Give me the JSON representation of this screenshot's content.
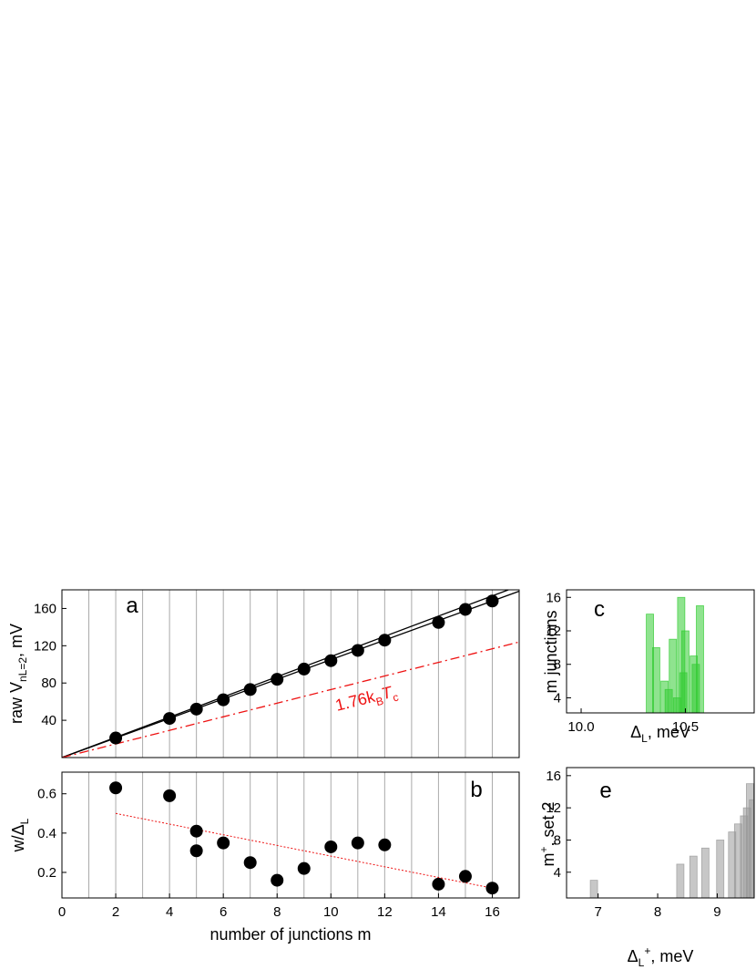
{
  "chart_data": [
    {
      "type": "scatter",
      "label": "a",
      "ylabel": [
        "raw V",
        "nL=2",
        ", mV"
      ],
      "xlim": [
        0,
        17
      ],
      "xgrid": [
        1,
        2,
        3,
        4,
        5,
        6,
        7,
        8,
        9,
        10,
        11,
        12,
        13,
        14,
        15,
        16
      ],
      "ylim": [
        0,
        180
      ],
      "yticks": [
        40,
        80,
        120,
        160
      ],
      "x": [
        2,
        4,
        5,
        6,
        7,
        8,
        9,
        10,
        11,
        12,
        14,
        15,
        16
      ],
      "values": [
        21,
        42,
        52,
        62,
        73,
        84,
        95,
        104,
        115,
        126,
        145,
        159,
        168
      ],
      "color": "#000000",
      "lines": [
        {
          "x": [
            0,
            17
          ],
          "values": [
            0,
            178.5
          ],
          "color": "#000000",
          "style": "solid"
        },
        {
          "x": [
            0,
            16.6
          ],
          "values": [
            0,
            180
          ],
          "color": "#000000",
          "style": "solid"
        },
        {
          "x": [
            0,
            17
          ],
          "values": [
            0,
            124
          ],
          "color": "#ee1111",
          "style": "dashdot"
        }
      ],
      "annotation": [
        "1.76k",
        "B",
        "T",
        "c"
      ],
      "annotation_color": "#ee1111"
    },
    {
      "type": "scatter",
      "label": "b",
      "ylabel": [
        "w/Δ",
        "L"
      ],
      "xlabel": "number of junctions m",
      "xlim": [
        0,
        17
      ],
      "xticks": [
        0,
        2,
        4,
        6,
        8,
        10,
        12,
        14,
        16
      ],
      "xgrid": [
        1,
        2,
        3,
        4,
        5,
        6,
        7,
        8,
        9,
        10,
        11,
        12,
        13,
        14,
        15,
        16
      ],
      "ylim": [
        0.07,
        0.71
      ],
      "yticks": [
        0.2,
        0.4,
        0.6
      ],
      "x": [
        2,
        4,
        5,
        5,
        6,
        7,
        8,
        9,
        10,
        11,
        12,
        14,
        15,
        16
      ],
      "values": [
        0.63,
        0.59,
        0.41,
        0.31,
        0.35,
        0.25,
        0.16,
        0.22,
        0.33,
        0.35,
        0.34,
        0.14,
        0.18,
        0.12
      ],
      "color": "#000000",
      "lines": [
        {
          "x": [
            2,
            16
          ],
          "values": [
            0.5,
            0.12
          ],
          "color": "#ee1111",
          "style": "dotted"
        }
      ]
    },
    {
      "type": "bar",
      "label": "c",
      "ylabel": [
        "m junctions"
      ],
      "xlabel": [
        "Δ",
        "L",
        ", meV"
      ],
      "xlim": [
        9.93,
        10.83
      ],
      "xticks": [
        {
          "value": 10,
          "label": "10.0"
        },
        10.5
      ],
      "ylim": [
        2.2,
        16.9
      ],
      "yticks": [
        4,
        8,
        12,
        16
      ],
      "x": [
        10.33,
        10.36,
        10.38,
        10.4,
        10.42,
        10.44,
        10.46,
        10.48,
        10.49,
        10.5,
        10.54,
        10.55,
        10.57
      ],
      "values": [
        14,
        10,
        2,
        6,
        5,
        11,
        4,
        16,
        7,
        12,
        9,
        8,
        15
      ],
      "color": "#33cc33"
    },
    {
      "type": "bar",
      "label": "e",
      "ylabel": [
        "m",
        "+",
        ", set 2"
      ],
      "xlabel": [
        "Δ",
        "L",
        "+",
        ", meV"
      ],
      "xlim": [
        6.47,
        9.62
      ],
      "xticks": [
        7,
        8,
        9
      ],
      "ylim": [
        0.8,
        17
      ],
      "yticks": [
        4,
        8,
        12,
        16
      ],
      "x": [
        6.93,
        8.38,
        8.6,
        8.8,
        9.05,
        9.25,
        9.35,
        9.45,
        9.5,
        9.55,
        9.6
      ],
      "values": [
        3,
        5,
        6,
        7,
        8,
        9,
        10,
        11,
        12,
        15,
        13
      ],
      "color": "#999999"
    }
  ]
}
